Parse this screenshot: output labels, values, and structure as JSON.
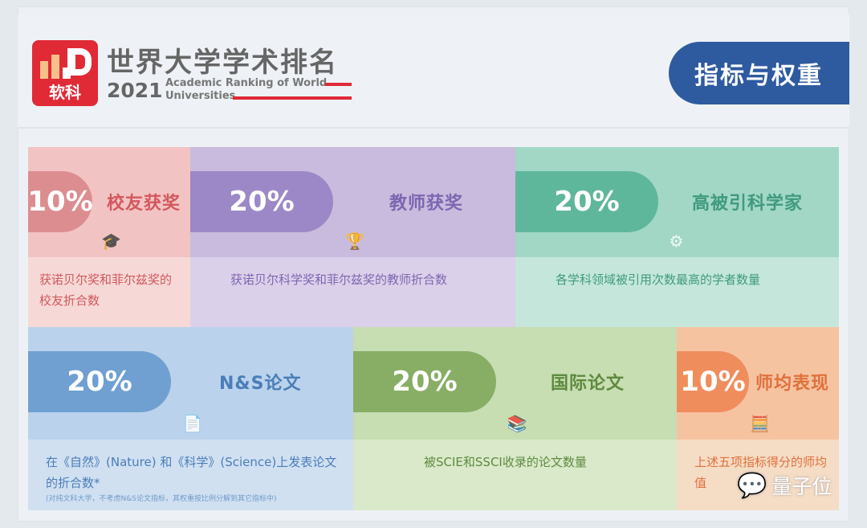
{
  "header": {
    "logo_text": "软科",
    "title": "世界大学学术排名",
    "year": "2021",
    "subtitle_line1": "Academic Ranking of World",
    "subtitle_line2": "Universities",
    "badge": "指标与权重"
  },
  "indicators": [
    {
      "weight": "10%",
      "name": "校友获奖",
      "desc": "获诺贝尔奖和菲尔兹奖的校友折合数",
      "icon": "mortarboard-icon",
      "colors": {
        "top": "#f2c3c3",
        "bottom": "#f6d9d7",
        "pill": "#dc8d90",
        "text": "#d2585e"
      }
    },
    {
      "weight": "20%",
      "name": "教师获奖",
      "desc": "获诺贝尔科学奖和菲尔兹奖的教师折合数",
      "icon": "trophy-icon",
      "colors": {
        "top": "#c8bbdd",
        "bottom": "#dbd0e9",
        "pill": "#9c88c6",
        "text": "#7d66b1"
      }
    },
    {
      "weight": "20%",
      "name": "高被引科学家",
      "desc": "各学科领域被引用次数最高的学者数量",
      "icon": "gear-brain-icon",
      "colors": {
        "top": "#a2d7c5",
        "bottom": "#c5e7db",
        "pill": "#5fb79b",
        "text": "#3f9a7e"
      }
    },
    {
      "weight": "20%",
      "name": "N&S论文",
      "desc": "在《自然》(Nature) 和《科学》(Science)上发表论文的折合数*",
      "note": "(对纯文科大学，不考虑N&S论文指标，其权重按比例分解到其它指标中)",
      "icon": "document-icon",
      "colors": {
        "top": "#bad2eb",
        "bottom": "#d0e0f1",
        "pill": "#6fa0d1",
        "text": "#4a7db8"
      }
    },
    {
      "weight": "20%",
      "name": "国际论文",
      "desc": "被SCIE和SSCI收录的论文数量",
      "icon": "books-icon",
      "colors": {
        "top": "#c7ddb2",
        "bottom": "#d9e9c9",
        "pill": "#87ae64",
        "text": "#5e8a3f"
      }
    },
    {
      "weight": "10%",
      "name": "师均表现",
      "desc": "上述五项指标得分的师均值",
      "icon": "abacus-icon",
      "colors": {
        "top": "#f6c3a1",
        "bottom": "#f5dcc5",
        "pill": "#f08d5d",
        "text": "#e0713d"
      }
    }
  ],
  "watermark": "量子位"
}
